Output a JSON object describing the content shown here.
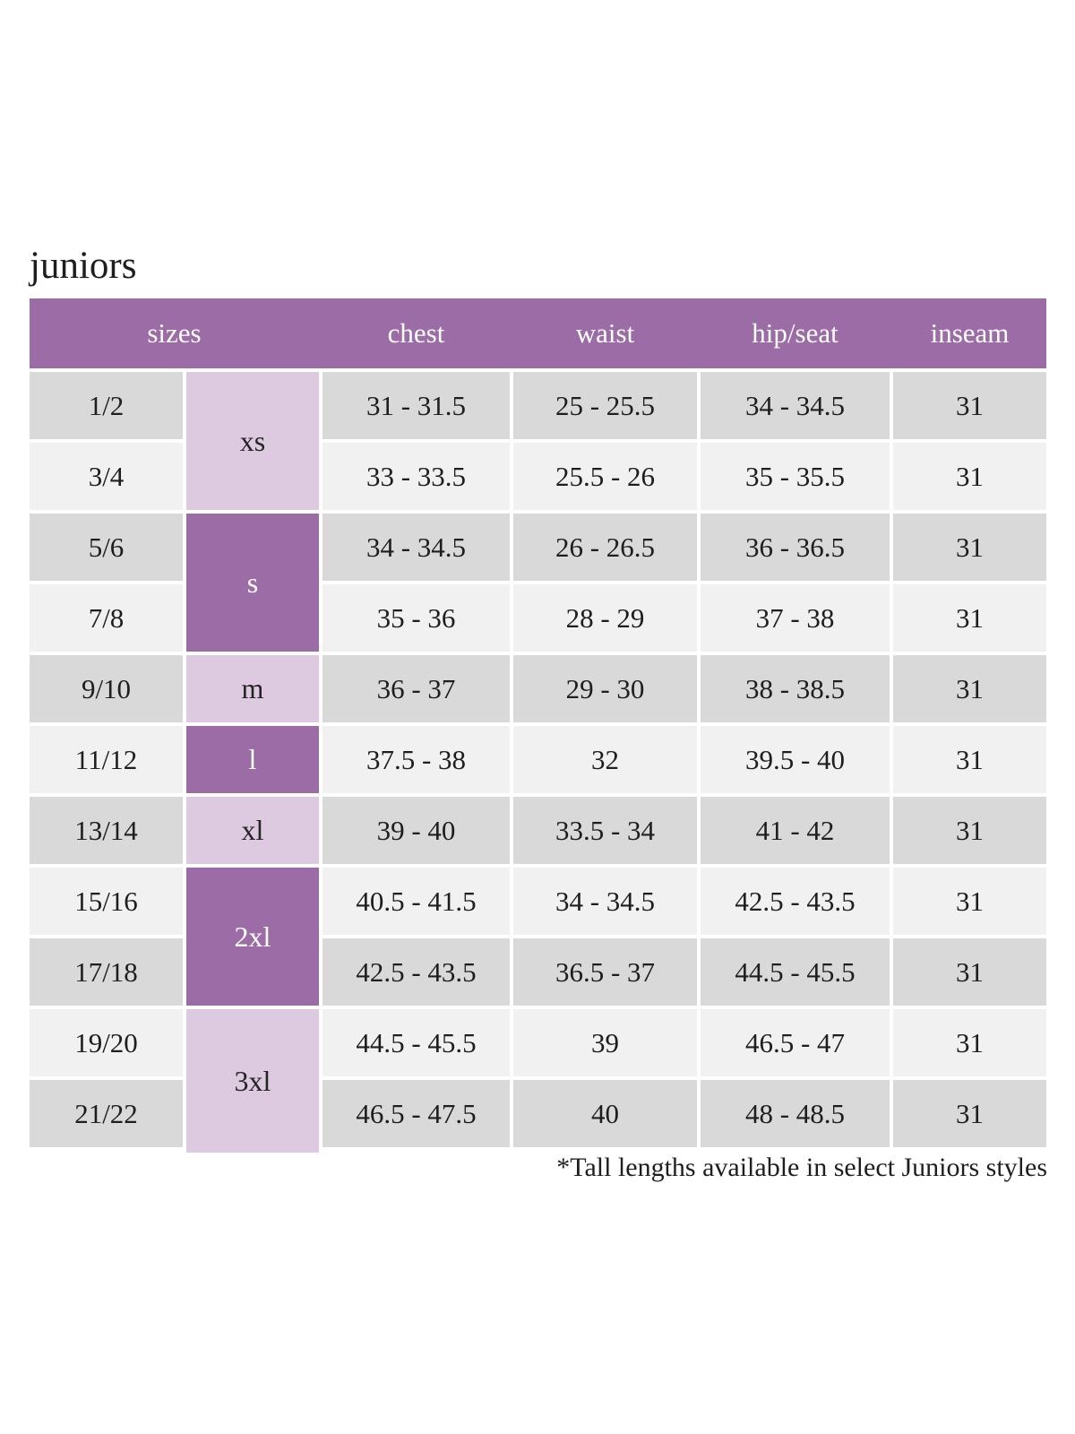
{
  "title": "juniors",
  "footnote": "*Tall lengths available in select Juniors styles",
  "colors": {
    "background": "#ffffff",
    "header_purple": "#9c6ca6",
    "light_purple": "#ddc9e0",
    "row_gray": "#d9d9d9",
    "row_light": "#f2f1f2",
    "header_text": "#ffffff",
    "body_text": "#1e1e1e"
  },
  "chart_data": {
    "type": "table",
    "title": "juniors",
    "columns": [
      "sizes",
      "chest",
      "waist",
      "hip/seat",
      "inseam"
    ],
    "size_groups": [
      {
        "label": "xs",
        "rows": 2,
        "shade": "light"
      },
      {
        "label": "s",
        "rows": 2,
        "shade": "dark"
      },
      {
        "label": "m",
        "rows": 1,
        "shade": "light"
      },
      {
        "label": "l",
        "rows": 1,
        "shade": "dark"
      },
      {
        "label": "xl",
        "rows": 1,
        "shade": "light"
      },
      {
        "label": "2xl",
        "rows": 2,
        "shade": "dark"
      },
      {
        "label": "3xl",
        "rows": 2,
        "shade": "light"
      }
    ],
    "rows": [
      {
        "size": "1/2",
        "chest": "31 - 31.5",
        "waist": "25 - 25.5",
        "hip_seat": "34 - 34.5",
        "inseam": "31"
      },
      {
        "size": "3/4",
        "chest": "33 - 33.5",
        "waist": "25.5 - 26",
        "hip_seat": "35 - 35.5",
        "inseam": "31"
      },
      {
        "size": "5/6",
        "chest": "34 - 34.5",
        "waist": "26 - 26.5",
        "hip_seat": "36 - 36.5",
        "inseam": "31"
      },
      {
        "size": "7/8",
        "chest": "35 - 36",
        "waist": "28 - 29",
        "hip_seat": "37 - 38",
        "inseam": "31"
      },
      {
        "size": "9/10",
        "chest": "36 - 37",
        "waist": "29 - 30",
        "hip_seat": "38 - 38.5",
        "inseam": "31"
      },
      {
        "size": "11/12",
        "chest": "37.5 - 38",
        "waist": "32",
        "hip_seat": "39.5 - 40",
        "inseam": "31"
      },
      {
        "size": "13/14",
        "chest": "39 - 40",
        "waist": "33.5 - 34",
        "hip_seat": "41 - 42",
        "inseam": "31"
      },
      {
        "size": "15/16",
        "chest": "40.5 - 41.5",
        "waist": "34 - 34.5",
        "hip_seat": "42.5 - 43.5",
        "inseam": "31"
      },
      {
        "size": "17/18",
        "chest": "42.5 - 43.5",
        "waist": "36.5 - 37",
        "hip_seat": "44.5 - 45.5",
        "inseam": "31"
      },
      {
        "size": "19/20",
        "chest": "44.5 - 45.5",
        "waist": "39",
        "hip_seat": "46.5 - 47",
        "inseam": "31"
      },
      {
        "size": "21/22",
        "chest": "46.5 - 47.5",
        "waist": "40",
        "hip_seat": "48 - 48.5",
        "inseam": "31"
      }
    ]
  }
}
